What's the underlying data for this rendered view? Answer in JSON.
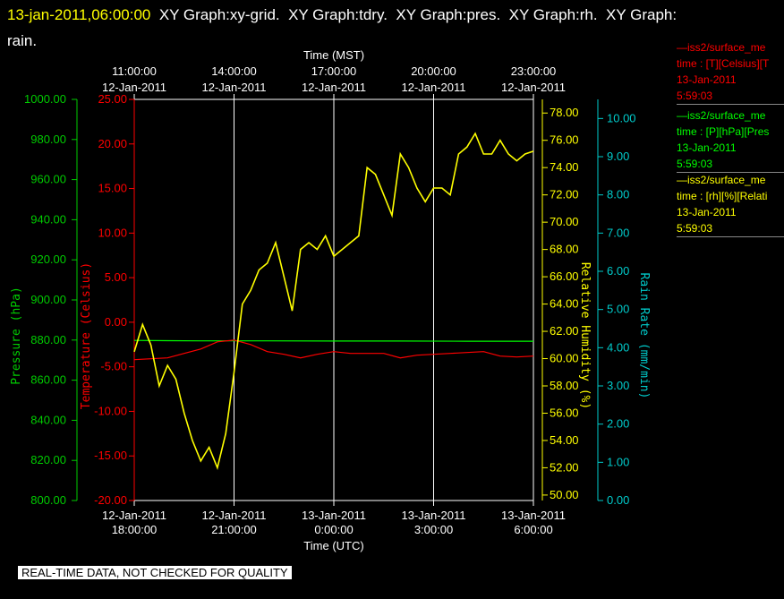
{
  "header": {
    "timestamp": "13-jan-2011,06:00:00",
    "title_rest": "  XY Graph:xy-grid.  XY Graph:tdry.  XY Graph:pres.  XY Graph:rh.  XY Graph:",
    "title_line2": "rain."
  },
  "footer": {
    "quality_note": "REAL-TIME DATA, NOT CHECKED FOR QUALITY"
  },
  "legend": [
    {
      "line1": "—iss2/surface_me",
      "line2": "time : [T][Celsius][T",
      "line3": "13-Jan-2011",
      "line4": "5:59:03",
      "color": "#ff0000"
    },
    {
      "line1": "—iss2/surface_me",
      "line2": "time : [P][hPa][Pres",
      "line3": "13-Jan-2011",
      "line4": "5:59:03",
      "color": "#00ff00"
    },
    {
      "line1": "—iss2/surface_me",
      "line2": "time : [rh][%][Relati",
      "line3": "13-Jan-2011",
      "line4": "5:59:03",
      "color": "#ffff00"
    }
  ],
  "chart_data": {
    "type": "line",
    "x_range_utc": [
      "12-Jan-2011 18:00:00",
      "13-Jan-2011 06:00:00"
    ],
    "top_axis": {
      "title": "Time (MST)",
      "ticks": [
        {
          "line1": "11:00:00",
          "line2": "12-Jan-2011"
        },
        {
          "line1": "14:00:00",
          "line2": "12-Jan-2011"
        },
        {
          "line1": "17:00:00",
          "line2": "12-Jan-2011"
        },
        {
          "line1": "20:00:00",
          "line2": "12-Jan-2011"
        },
        {
          "line1": "23:00:00",
          "line2": "12-Jan-2011"
        }
      ]
    },
    "bottom_axis": {
      "title": "Time (UTC)",
      "ticks": [
        {
          "line1": "12-Jan-2011",
          "line2": "18:00:00"
        },
        {
          "line1": "12-Jan-2011",
          "line2": "21:00:00"
        },
        {
          "line1": "13-Jan-2011",
          "line2": "0:00:00"
        },
        {
          "line1": "13-Jan-2011",
          "line2": "3:00:00"
        },
        {
          "line1": "13-Jan-2011",
          "line2": "6:00:00"
        }
      ]
    },
    "axes": {
      "pressure": {
        "label": "Pressure (hPa)",
        "range": [
          800,
          1000
        ],
        "ticks": [
          "800.00",
          "820.00",
          "840.00",
          "860.00",
          "880.00",
          "900.00",
          "920.00",
          "940.00",
          "960.00",
          "980.00",
          "1000.00"
        ],
        "color": "#00cc00"
      },
      "temperature": {
        "label": "Temperature (Celsius)",
        "range": [
          -20,
          25
        ],
        "ticks": [
          "-20.00",
          "-15.00",
          "-10.00",
          "-5.00",
          "0.00",
          "5.00",
          "10.00",
          "15.00",
          "20.00",
          "25.00"
        ],
        "color": "#ff0000"
      },
      "rh": {
        "label": "Relative Humidity (%)",
        "range": [
          49.6,
          79
        ],
        "ticks": [
          "50.00",
          "52.00",
          "54.00",
          "56.00",
          "58.00",
          "60.00",
          "62.00",
          "64.00",
          "66.00",
          "68.00",
          "70.00",
          "72.00",
          "74.00",
          "76.00",
          "78.00"
        ],
        "color": "#ffff00"
      },
      "rain": {
        "label": "Rain Rate (mm/min)",
        "range": [
          0,
          10.5
        ],
        "ticks": [
          "0.00",
          "1.00",
          "2.00",
          "3.00",
          "4.00",
          "5.00",
          "6.00",
          "7.00",
          "8.00",
          "9.00",
          "10.00"
        ],
        "color": "#00cccc"
      }
    },
    "series": [
      {
        "name": "pressure",
        "axis": "pressure",
        "color": "#00ff00",
        "x": [
          0,
          1,
          2,
          3,
          4,
          6,
          8,
          10,
          12
        ],
        "y": [
          879.8,
          879.7,
          879.6,
          879.6,
          879.6,
          879.5,
          879.5,
          879.4,
          879.4
        ]
      },
      {
        "name": "temperature",
        "axis": "temperature",
        "color": "#ff0000",
        "x": [
          0,
          0.5,
          1,
          1.5,
          2,
          2.5,
          3,
          3.5,
          4,
          4.5,
          5,
          5.5,
          6,
          6.5,
          7,
          7.5,
          8,
          8.5,
          9,
          9.5,
          10,
          10.5,
          11,
          11.5,
          12
        ],
        "y": [
          -4.2,
          -4.1,
          -4.0,
          -3.5,
          -3.0,
          -2.2,
          -2.0,
          -2.5,
          -3.3,
          -3.6,
          -4.0,
          -3.6,
          -3.3,
          -3.5,
          -3.5,
          -3.5,
          -4.0,
          -3.7,
          -3.6,
          -3.5,
          -3.4,
          -3.3,
          -3.8,
          -3.9,
          -3.8
        ]
      },
      {
        "name": "rh",
        "axis": "rh",
        "color": "#ffff00",
        "x": [
          0,
          0.25,
          0.5,
          0.75,
          1,
          1.25,
          1.5,
          1.75,
          2,
          2.25,
          2.5,
          2.75,
          3,
          3.25,
          3.5,
          3.75,
          4,
          4.25,
          4.5,
          4.75,
          5,
          5.25,
          5.5,
          5.75,
          6,
          6.25,
          6.5,
          6.75,
          7,
          7.25,
          7.5,
          7.75,
          8,
          8.25,
          8.5,
          8.75,
          9,
          9.25,
          9.5,
          9.75,
          10,
          10.25,
          10.5,
          10.75,
          11,
          11.25,
          11.5,
          11.75,
          12
        ],
        "y": [
          60.5,
          62.5,
          61.0,
          58.0,
          59.5,
          58.5,
          56.0,
          54.0,
          52.5,
          53.5,
          52.0,
          54.5,
          59.0,
          64.0,
          65.0,
          66.5,
          67.0,
          68.5,
          66.0,
          63.5,
          68.0,
          68.5,
          68.0,
          69.0,
          67.5,
          68.0,
          68.5,
          69.0,
          74.0,
          73.5,
          72.0,
          70.5,
          75.0,
          74.0,
          72.5,
          71.5,
          72.5,
          72.5,
          72.0,
          75.0,
          75.5,
          76.5,
          75.0,
          75.0,
          76.0,
          75.0,
          74.5,
          75.0,
          75.2
        ]
      }
    ]
  }
}
